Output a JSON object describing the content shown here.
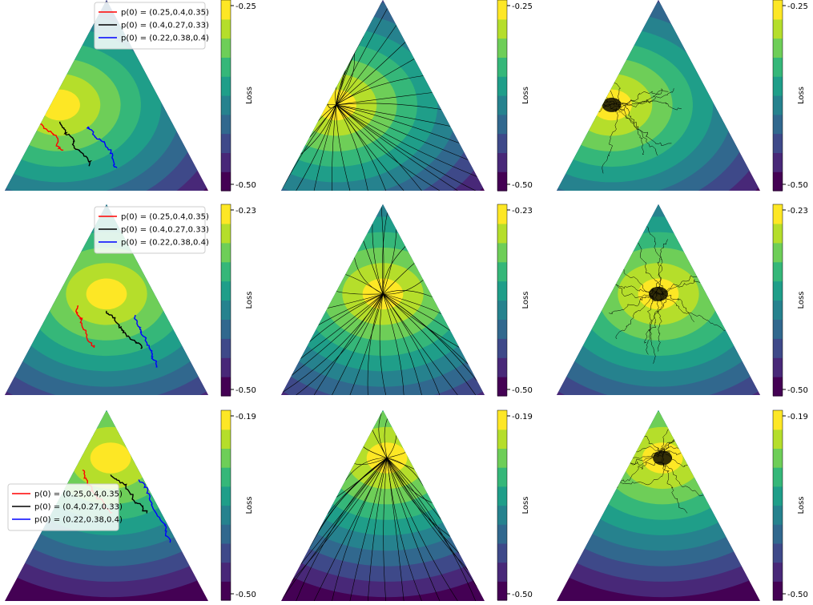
{
  "chart_data": [
    {
      "type": "contour",
      "panel": "trajectories",
      "row": 1,
      "col": 1,
      "colorbar": {
        "label": "Loss",
        "ticks": [
          "-0.25",
          "-0.50"
        ],
        "range": [
          -0.5,
          -0.25
        ]
      },
      "optimum": {
        "x": 0.27,
        "y": 0.55
      },
      "legend": {
        "position": "top-center",
        "entries": [
          {
            "name": "(0.25,0.4,0.35)",
            "color": "#ff0000"
          },
          {
            "name": "(0.4,0.27,0.33)",
            "color": "#000000"
          },
          {
            "name": "(0.22,0.38,0.4)",
            "color": "#0000ff"
          }
        ]
      }
    },
    {
      "type": "contour",
      "panel": "stream",
      "row": 1,
      "col": 2,
      "colorbar": {
        "label": "Loss",
        "ticks": [
          "-0.25",
          "-0.50"
        ],
        "range": [
          -0.5,
          -0.25
        ]
      },
      "optimum": {
        "x": 0.27,
        "y": 0.55
      }
    },
    {
      "type": "contour",
      "panel": "scatter",
      "row": 1,
      "col": 3,
      "colorbar": {
        "label": "Loss",
        "ticks": [
          "-0.25",
          "-0.50"
        ],
        "range": [
          -0.5,
          -0.25
        ]
      },
      "optimum": {
        "x": 0.27,
        "y": 0.55
      }
    },
    {
      "type": "contour",
      "panel": "trajectories",
      "row": 2,
      "col": 1,
      "colorbar": {
        "label": "Loss",
        "ticks": [
          "-0.23",
          "-0.50"
        ],
        "range": [
          -0.5,
          -0.23
        ]
      },
      "optimum": {
        "x": 0.5,
        "y": 0.47
      },
      "legend": {
        "position": "top-center",
        "entries": [
          {
            "name": "(0.25,0.4,0.35)",
            "color": "#ff0000"
          },
          {
            "name": "(0.4,0.27,0.33)",
            "color": "#000000"
          },
          {
            "name": "(0.22,0.38,0.4)",
            "color": "#0000ff"
          }
        ]
      }
    },
    {
      "type": "contour",
      "panel": "stream",
      "row": 2,
      "col": 2,
      "colorbar": {
        "label": "Loss",
        "ticks": [
          "-0.23",
          "-0.50"
        ],
        "range": [
          -0.5,
          -0.23
        ]
      },
      "optimum": {
        "x": 0.5,
        "y": 0.47
      }
    },
    {
      "type": "contour",
      "panel": "scatter",
      "row": 2,
      "col": 3,
      "colorbar": {
        "label": "Loss",
        "ticks": [
          "-0.23",
          "-0.50"
        ],
        "range": [
          -0.5,
          -0.23
        ]
      },
      "optimum": {
        "x": 0.5,
        "y": 0.47
      }
    },
    {
      "type": "contour",
      "panel": "trajectories",
      "row": 3,
      "col": 1,
      "colorbar": {
        "label": "Loss",
        "ticks": [
          "-0.19",
          "-0.50"
        ],
        "range": [
          -0.5,
          -0.19
        ]
      },
      "optimum": {
        "x": 0.52,
        "y": 0.25
      },
      "legend": {
        "position": "center-left",
        "entries": [
          {
            "name": "(0.25,0.4,0.35)",
            "color": "#ff0000"
          },
          {
            "name": "(0.4,0.27,0.33)",
            "color": "#000000"
          },
          {
            "name": "(0.22,0.38,0.4)",
            "color": "#0000ff"
          }
        ]
      }
    },
    {
      "type": "contour",
      "panel": "stream",
      "row": 3,
      "col": 2,
      "colorbar": {
        "label": "Loss",
        "ticks": [
          "-0.19",
          "-0.50"
        ],
        "range": [
          -0.5,
          -0.19
        ]
      },
      "optimum": {
        "x": 0.52,
        "y": 0.25
      }
    },
    {
      "type": "contour",
      "panel": "scatter",
      "row": 3,
      "col": 3,
      "colorbar": {
        "label": "Loss",
        "ticks": [
          "-0.19",
          "-0.50"
        ],
        "range": [
          -0.5,
          -0.19
        ]
      },
      "optimum": {
        "x": 0.52,
        "y": 0.25
      }
    }
  ],
  "legend_prefix": "p(0) = ",
  "colors": {
    "viridis": [
      "#440154",
      "#482878",
      "#3e4989",
      "#31688e",
      "#26828e",
      "#1f9e89",
      "#35b779",
      "#6ece58",
      "#b5de2b",
      "#fde725"
    ]
  }
}
